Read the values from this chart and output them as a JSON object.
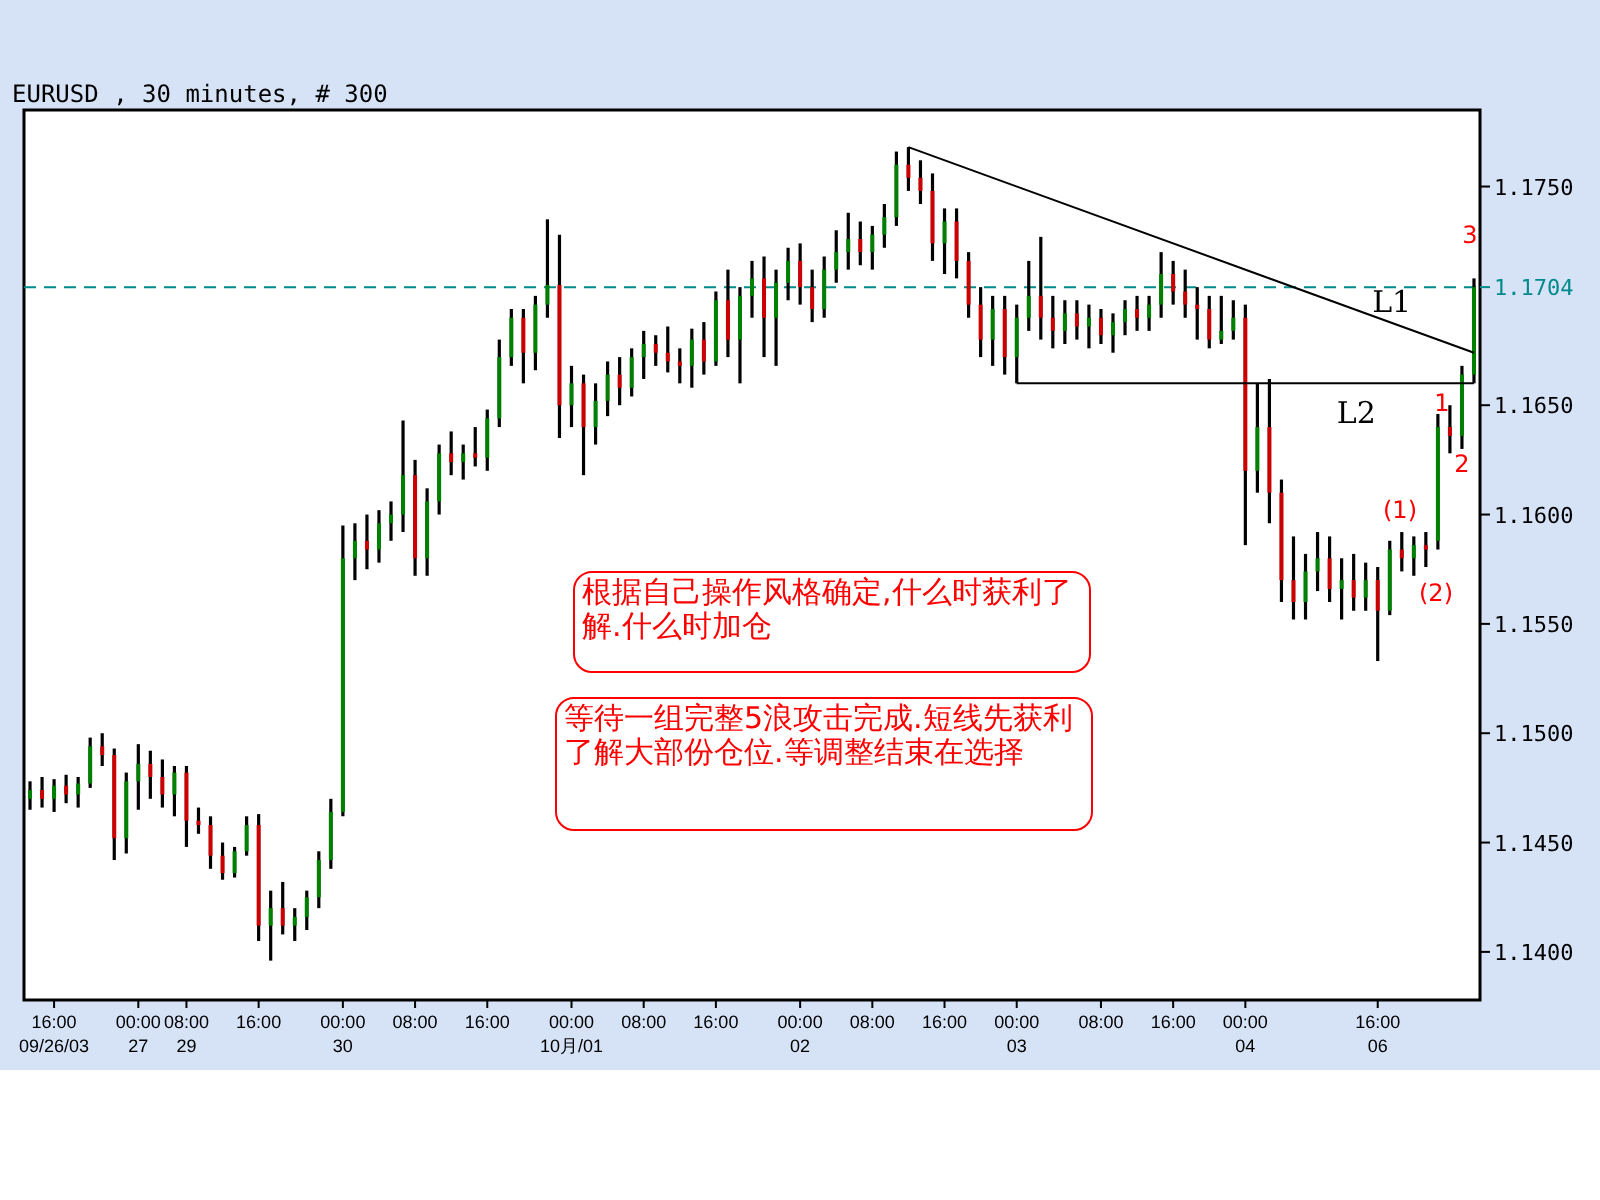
{
  "chart_data": {
    "type": "candlestick",
    "title": "EURUSD , 30 minutes, # 300",
    "categories": [
      null,
      null,
      "16:00\n09/26/03",
      null,
      null,
      null,
      null,
      null,
      null,
      "00:00\n27",
      null,
      null,
      null,
      "08:00\n29",
      null,
      null,
      null,
      null,
      null,
      "16:00",
      null,
      null,
      null,
      null,
      null,
      null,
      "00:00\n30",
      null,
      null,
      null,
      null,
      null,
      "08:00",
      null,
      null,
      null,
      null,
      null,
      "16:00",
      null,
      null,
      null,
      null,
      null,
      null,
      "00:00\n10月/01",
      null,
      null,
      null,
      null,
      null,
      "08:00",
      null,
      null,
      null,
      null,
      null,
      "16:00",
      null,
      null,
      null,
      null,
      null,
      null,
      "00:00\n02",
      null,
      null,
      null,
      null,
      null,
      "08:00",
      null,
      null,
      null,
      null,
      null,
      "16:00",
      null,
      null,
      null,
      null,
      null,
      "00:00\n03",
      null,
      null,
      null,
      null,
      null,
      null,
      "08:00",
      null,
      null,
      null,
      null,
      null,
      "16:00",
      null,
      null,
      null,
      null,
      null,
      "00:00\n04",
      null,
      null,
      null,
      null,
      null,
      null,
      null,
      null,
      null,
      null,
      "16:00\n06",
      null,
      null,
      null,
      null,
      null,
      null,
      null,
      null
    ],
    "ohlc": [
      [
        1.147,
        1.1478,
        1.1465,
        1.1474
      ],
      [
        1.1474,
        1.148,
        1.1466,
        1.147
      ],
      [
        1.147,
        1.1479,
        1.1464,
        1.1476
      ],
      [
        1.1476,
        1.1481,
        1.1468,
        1.1472
      ],
      [
        1.1472,
        1.148,
        1.1466,
        1.1477
      ],
      [
        1.1477,
        1.1498,
        1.1475,
        1.1494
      ],
      [
        1.1494,
        1.15,
        1.1485,
        1.149
      ],
      [
        1.149,
        1.1493,
        1.1442,
        1.1452
      ],
      [
        1.1452,
        1.1482,
        1.1445,
        1.1478
      ],
      [
        1.1478,
        1.1495,
        1.1465,
        1.1486
      ],
      [
        1.1486,
        1.1492,
        1.147,
        1.148
      ],
      [
        1.148,
        1.1488,
        1.1466,
        1.1472
      ],
      [
        1.1472,
        1.1485,
        1.1462,
        1.1482
      ],
      [
        1.1482,
        1.1485,
        1.1448,
        1.146
      ],
      [
        1.146,
        1.1466,
        1.1454,
        1.1458
      ],
      [
        1.1458,
        1.1462,
        1.1438,
        1.1444
      ],
      [
        1.1444,
        1.145,
        1.1433,
        1.1436
      ],
      [
        1.1436,
        1.1448,
        1.1434,
        1.1446
      ],
      [
        1.1446,
        1.1462,
        1.1444,
        1.1458
      ],
      [
        1.1458,
        1.1463,
        1.1405,
        1.1412
      ],
      [
        1.1412,
        1.1428,
        1.1396,
        1.142
      ],
      [
        1.142,
        1.1432,
        1.1408,
        1.1412
      ],
      [
        1.1412,
        1.142,
        1.1405,
        1.1416
      ],
      [
        1.1416,
        1.1428,
        1.141,
        1.1425
      ],
      [
        1.1425,
        1.1446,
        1.142,
        1.1442
      ],
      [
        1.1442,
        1.147,
        1.1438,
        1.1464
      ],
      [
        1.1464,
        1.1595,
        1.1462,
        1.158
      ],
      [
        1.158,
        1.1596,
        1.157,
        1.1588
      ],
      [
        1.1588,
        1.16,
        1.1575,
        1.1584
      ],
      [
        1.1584,
        1.1602,
        1.1578,
        1.1596
      ],
      [
        1.1596,
        1.1606,
        1.1588,
        1.16
      ],
      [
        1.16,
        1.1643,
        1.1592,
        1.1618
      ],
      [
        1.1618,
        1.1625,
        1.1572,
        1.158
      ],
      [
        1.158,
        1.1612,
        1.1572,
        1.1606
      ],
      [
        1.1606,
        1.1632,
        1.16,
        1.1628
      ],
      [
        1.1628,
        1.1638,
        1.1618,
        1.1624
      ],
      [
        1.1624,
        1.1632,
        1.1616,
        1.1628
      ],
      [
        1.1628,
        1.164,
        1.1622,
        1.1626
      ],
      [
        1.1626,
        1.1648,
        1.162,
        1.1644
      ],
      [
        1.1644,
        1.168,
        1.164,
        1.1672
      ],
      [
        1.1672,
        1.1694,
        1.1668,
        1.169
      ],
      [
        1.169,
        1.1694,
        1.166,
        1.1674
      ],
      [
        1.1674,
        1.17,
        1.1666,
        1.1696
      ],
      [
        1.1696,
        1.1735,
        1.169,
        1.1705
      ],
      [
        1.1705,
        1.1728,
        1.1635,
        1.165
      ],
      [
        1.165,
        1.1668,
        1.164,
        1.166
      ],
      [
        1.166,
        1.1664,
        1.1618,
        1.164
      ],
      [
        1.164,
        1.166,
        1.1632,
        1.1652
      ],
      [
        1.1652,
        1.167,
        1.1645,
        1.1664
      ],
      [
        1.1664,
        1.1672,
        1.165,
        1.1658
      ],
      [
        1.1658,
        1.1676,
        1.1654,
        1.1672
      ],
      [
        1.1672,
        1.1684,
        1.1662,
        1.1678
      ],
      [
        1.1678,
        1.1682,
        1.1668,
        1.1674
      ],
      [
        1.1674,
        1.1686,
        1.1665,
        1.167
      ],
      [
        1.167,
        1.1676,
        1.166,
        1.1668
      ],
      [
        1.1668,
        1.1685,
        1.1658,
        1.168
      ],
      [
        1.168,
        1.1688,
        1.1664,
        1.167
      ],
      [
        1.167,
        1.1702,
        1.1668,
        1.1698
      ],
      [
        1.1698,
        1.1712,
        1.1672,
        1.168
      ],
      [
        1.168,
        1.1704,
        1.166,
        1.17
      ],
      [
        1.17,
        1.1716,
        1.169,
        1.1708
      ],
      [
        1.1708,
        1.1718,
        1.1672,
        1.169
      ],
      [
        1.169,
        1.1712,
        1.1668,
        1.1706
      ],
      [
        1.1706,
        1.1722,
        1.1698,
        1.1716
      ],
      [
        1.1716,
        1.1724,
        1.1696,
        1.1704
      ],
      [
        1.1704,
        1.1712,
        1.1688,
        1.1694
      ],
      [
        1.1694,
        1.1718,
        1.169,
        1.1712
      ],
      [
        1.1712,
        1.173,
        1.1706,
        1.172
      ],
      [
        1.172,
        1.1738,
        1.1712,
        1.1726
      ],
      [
        1.1726,
        1.1734,
        1.1714,
        1.172
      ],
      [
        1.172,
        1.1732,
        1.1712,
        1.1728
      ],
      [
        1.1728,
        1.1742,
        1.1722,
        1.1736
      ],
      [
        1.1736,
        1.1766,
        1.1732,
        1.176
      ],
      [
        1.176,
        1.1768,
        1.1748,
        1.1754
      ],
      [
        1.1754,
        1.1762,
        1.1742,
        1.1748
      ],
      [
        1.1748,
        1.1756,
        1.1716,
        1.1724
      ],
      [
        1.1724,
        1.174,
        1.171,
        1.1734
      ],
      [
        1.1734,
        1.174,
        1.1708,
        1.1716
      ],
      [
        1.1716,
        1.172,
        1.169,
        1.1696
      ],
      [
        1.1696,
        1.1704,
        1.1672,
        1.168
      ],
      [
        1.168,
        1.17,
        1.1668,
        1.1694
      ],
      [
        1.1694,
        1.17,
        1.1664,
        1.1672
      ],
      [
        1.1672,
        1.1696,
        1.166,
        1.169
      ],
      [
        1.169,
        1.1716,
        1.1684,
        1.17
      ],
      [
        1.17,
        1.1727,
        1.168,
        1.169
      ],
      [
        1.169,
        1.17,
        1.1676,
        1.1684
      ],
      [
        1.1684,
        1.1698,
        1.1678,
        1.1692
      ],
      [
        1.1692,
        1.1698,
        1.168,
        1.1686
      ],
      [
        1.1686,
        1.1696,
        1.1676,
        1.169
      ],
      [
        1.169,
        1.1694,
        1.1678,
        1.1682
      ],
      [
        1.1682,
        1.1692,
        1.1674,
        1.1688
      ],
      [
        1.1688,
        1.1698,
        1.1682,
        1.1694
      ],
      [
        1.1694,
        1.17,
        1.1684,
        1.169
      ],
      [
        1.169,
        1.17,
        1.1684,
        1.1696
      ],
      [
        1.1696,
        1.172,
        1.169,
        1.171
      ],
      [
        1.171,
        1.1716,
        1.1696,
        1.1702
      ],
      [
        1.1702,
        1.1712,
        1.169,
        1.1696
      ],
      [
        1.1696,
        1.1704,
        1.168,
        1.1694
      ],
      [
        1.1694,
        1.17,
        1.1676,
        1.168
      ],
      [
        1.168,
        1.17,
        1.1678,
        1.1684
      ],
      [
        1.1684,
        1.1698,
        1.168,
        1.169
      ],
      [
        1.169,
        1.1696,
        1.1586,
        1.162
      ],
      [
        1.162,
        1.166,
        1.161,
        1.164
      ],
      [
        1.164,
        1.1662,
        1.1596,
        1.161
      ],
      [
        1.161,
        1.1616,
        1.156,
        1.157
      ],
      [
        1.157,
        1.159,
        1.1552,
        1.156
      ],
      [
        1.156,
        1.1582,
        1.1552,
        1.1574
      ],
      [
        1.1574,
        1.1592,
        1.1565,
        1.158
      ],
      [
        1.158,
        1.159,
        1.156,
        1.1566
      ],
      [
        1.1566,
        1.158,
        1.1552,
        1.157
      ],
      [
        1.157,
        1.1582,
        1.1556,
        1.1562
      ],
      [
        1.1562,
        1.1578,
        1.1556,
        1.157
      ],
      [
        1.157,
        1.1576,
        1.1533,
        1.1556
      ],
      [
        1.1556,
        1.1588,
        1.1554,
        1.1584
      ],
      [
        1.1584,
        1.1592,
        1.1574,
        1.158
      ],
      [
        1.158,
        1.159,
        1.1572,
        1.1586
      ],
      [
        1.1586,
        1.1592,
        1.1576,
        1.1584
      ],
      [
        1.1588,
        1.1646,
        1.1584,
        1.164
      ],
      [
        1.164,
        1.165,
        1.1628,
        1.1636
      ],
      [
        1.1636,
        1.1668,
        1.163,
        1.1664
      ],
      [
        1.1664,
        1.1708,
        1.166,
        1.1704
      ]
    ],
    "series": [
      {
        "type": "line",
        "name": "L1",
        "color": "#000000",
        "values": [
          null,
          null,
          null,
          null,
          null,
          null,
          null,
          null,
          null,
          null,
          null,
          null,
          null,
          null,
          null,
          null,
          null,
          null,
          null,
          null,
          null,
          null,
          null,
          null,
          null,
          null,
          null,
          null,
          null,
          null,
          null,
          null,
          null,
          null,
          null,
          null,
          null,
          null,
          null,
          null,
          null,
          null,
          null,
          null,
          null,
          null,
          null,
          null,
          null,
          null,
          null,
          null,
          null,
          null,
          null,
          null,
          null,
          null,
          null,
          null,
          null,
          null,
          null,
          null,
          null,
          null,
          null,
          null,
          null,
          null,
          null,
          null,
          null,
          1.1768,
          null,
          null,
          null,
          null,
          null,
          null,
          null,
          null,
          null,
          null,
          null,
          null,
          null,
          null,
          null,
          null,
          null,
          null,
          null,
          null,
          null,
          null,
          null,
          null,
          null,
          null,
          null,
          null,
          null,
          null,
          null,
          null,
          null,
          null,
          null,
          null,
          null,
          null,
          null,
          null,
          null,
          null,
          null,
          null,
          null,
          null,
          1.1674
        ]
      },
      {
        "type": "line",
        "name": "L2",
        "color": "#000000",
        "values": [
          null,
          null,
          null,
          null,
          null,
          null,
          null,
          null,
          null,
          null,
          null,
          null,
          null,
          null,
          null,
          null,
          null,
          null,
          null,
          null,
          null,
          null,
          null,
          null,
          null,
          null,
          null,
          null,
          null,
          null,
          null,
          null,
          null,
          null,
          null,
          null,
          null,
          null,
          null,
          null,
          null,
          null,
          null,
          null,
          null,
          null,
          null,
          null,
          null,
          null,
          null,
          null,
          null,
          null,
          null,
          null,
          null,
          null,
          null,
          null,
          null,
          null,
          null,
          null,
          null,
          null,
          null,
          null,
          null,
          null,
          null,
          null,
          null,
          null,
          null,
          null,
          null,
          null,
          null,
          null,
          null,
          null,
          1.166,
          null,
          null,
          null,
          null,
          null,
          null,
          null,
          null,
          null,
          null,
          null,
          null,
          null,
          null,
          null,
          null,
          null,
          null,
          null,
          null,
          null,
          null,
          null,
          null,
          null,
          null,
          null,
          null,
          null,
          null,
          null,
          null,
          null,
          null,
          null,
          null,
          null,
          1.166
        ]
      }
    ],
    "ylim": [
      1.1378,
      1.1785
    ],
    "yticks": [
      {
        "value": 1.175,
        "label": "1.1750"
      },
      {
        "value": 1.165,
        "label": "1.1650"
      },
      {
        "value": 1.16,
        "label": "1.1600"
      },
      {
        "value": 1.155,
        "label": "1.1550"
      },
      {
        "value": 1.15,
        "label": "1.1500"
      },
      {
        "value": 1.145,
        "label": "1.1450"
      },
      {
        "value": 1.14,
        "label": "1.1400"
      }
    ],
    "ref_lines": [
      {
        "axis": "y",
        "value": 1.1704,
        "label": "1.1704",
        "color": "#008b8b",
        "line_style": "dashed"
      }
    ],
    "annotations": [
      "3",
      "1",
      "2",
      "(1)",
      "(2)",
      "根据自己操作风格确定,什么时获利了解.什么时加仓",
      "等待一组完整5浪攻击完成.短线先获利了解大部份仓位.等调整结束在选择"
    ]
  }
}
